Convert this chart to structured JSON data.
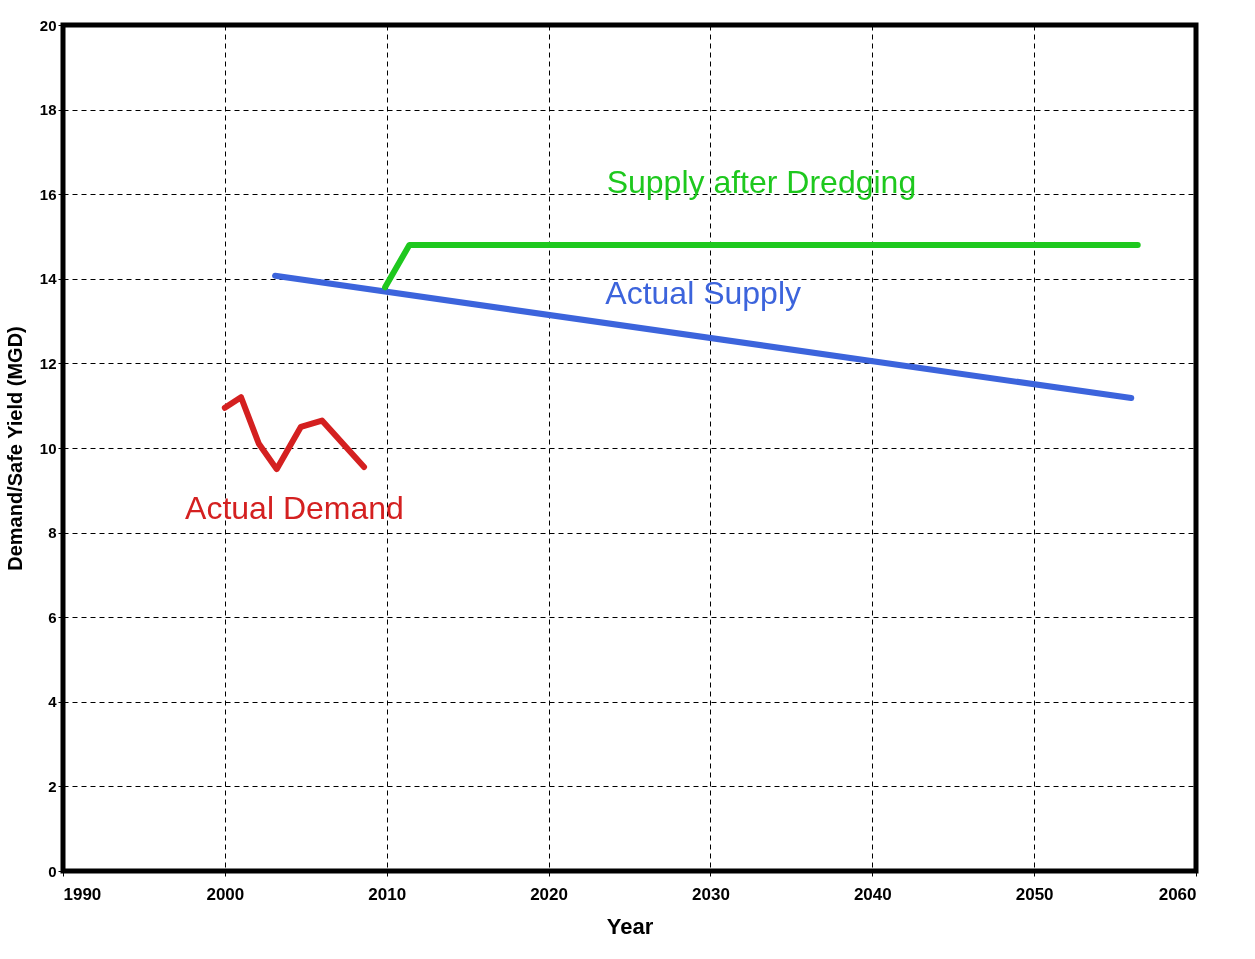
{
  "chart_data": {
    "type": "line",
    "xlabel": "Year",
    "ylabel": "Demand/Safe Yield (MGD)",
    "xlim": [
      1990,
      2060
    ],
    "xticks": [
      1990,
      2000,
      2010,
      2020,
      2030,
      2040,
      2050,
      2060
    ],
    "ylim": [
      0,
      20
    ],
    "yticks": [
      0,
      2,
      4,
      6,
      8,
      10,
      12,
      14,
      16,
      18,
      20
    ],
    "grid": true,
    "legend": false,
    "marker": "none",
    "line_style": "solid",
    "series": [
      {
        "name": "Actual Demand",
        "color": "#d42020",
        "x": [
          2000.0,
          2001.0,
          2002.1,
          2003.2,
          2004.7,
          2006.0,
          2008.6
        ],
        "values": [
          10.95,
          11.2,
          10.1,
          9.5,
          10.5,
          10.65,
          9.55
        ]
      },
      {
        "name": "Actual Supply",
        "color": "#3c64dc",
        "x": [
          2003.1,
          2056.0
        ],
        "values": [
          14.07,
          11.18
        ]
      },
      {
        "name": "Supply after Dredging",
        "color": "#1ec81e",
        "x": [
          2009.9,
          2011.4,
          2056.4
        ],
        "values": [
          13.8,
          14.8,
          14.8
        ]
      }
    ]
  }
}
